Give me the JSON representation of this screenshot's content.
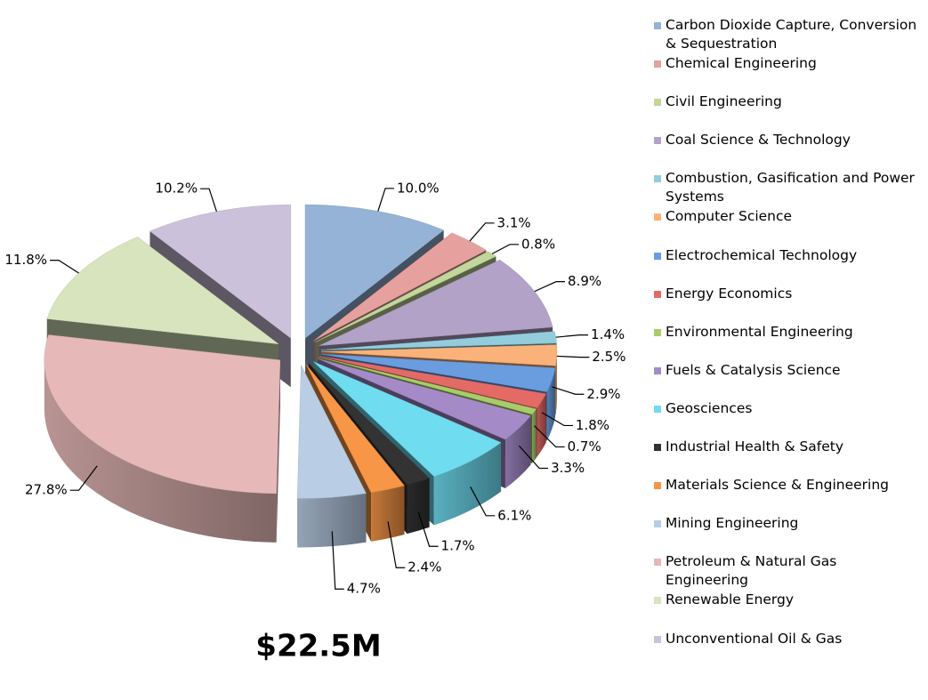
{
  "chart_data": {
    "type": "pie3d",
    "annotation": "$22.5M",
    "categories": [
      "Carbon Dioxide Capture, Conversion & Sequestration",
      "Chemical Engineering",
      "Civil Engineering",
      "Coal Science & Technology",
      "Combustion, Gasification and Power Systems",
      "Computer Science",
      "Electrochemical Technology",
      "Energy Economics",
      "Environmental Engineering",
      "Fuels & Catalysis Science",
      "Geosciences",
      "Industrial Health & Safety",
      "Materials Science & Engineering",
      "Mining Engineering",
      "Petroleum & Natural Gas Engineering",
      "Renewable Energy",
      "Unconventional Oil & Gas"
    ],
    "values": [
      10.0,
      3.1,
      0.8,
      8.9,
      1.4,
      2.5,
      2.9,
      1.8,
      0.7,
      3.3,
      6.1,
      1.7,
      2.4,
      4.7,
      27.8,
      11.8,
      10.2
    ],
    "value_labels": [
      "10.0%",
      "3.1%",
      "0.8%",
      "8.9%",
      "1.4%",
      "2.5%",
      "2.9%",
      "1.8%",
      "0.7%",
      "3.3%",
      "6.1%",
      "1.7%",
      "2.4%",
      "4.7%",
      "27.8%",
      "11.8%",
      "10.2%"
    ],
    "colors": [
      "#95b3d7",
      "#e6a19f",
      "#c3d69b",
      "#b3a2c7",
      "#93cddd",
      "#fab27a",
      "#6a9de0",
      "#e46a66",
      "#a8cc6a",
      "#a48bc8",
      "#6fdcf0",
      "#333333",
      "#f79646",
      "#b9cde5",
      "#e6b9b8",
      "#d7e4bd",
      "#ccc1da"
    ],
    "legend": "right"
  }
}
